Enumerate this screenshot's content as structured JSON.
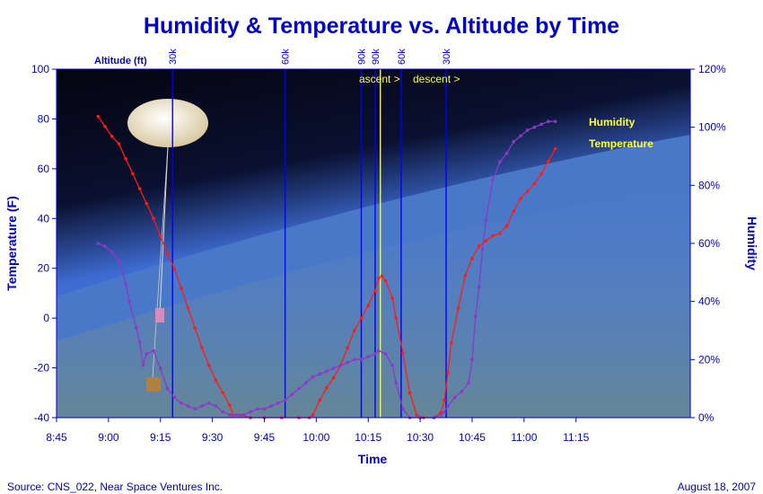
{
  "chart_data": {
    "type": "line",
    "title": "Humidity & Temperature vs. Altitude by Time",
    "xlabel": "Time",
    "ylabel_left": "Temperature (F)",
    "ylabel_right": "Humidity",
    "altitude_label": "Altitude (ft)",
    "x_ticks": [
      "8:45",
      "9:00",
      "9:15",
      "9:30",
      "9:45",
      "10:00",
      "10:15",
      "10:30",
      "10:45",
      "11:00",
      "11:15"
    ],
    "x_tick_minutes": [
      525,
      540,
      555,
      570,
      585,
      600,
      615,
      630,
      645,
      660,
      675
    ],
    "xlim_minutes": [
      525,
      708
    ],
    "ylim_left": [
      -40,
      100
    ],
    "y_ticks_left": [
      "100",
      "80",
      "60",
      "40",
      "20",
      "0",
      "-20",
      "-40"
    ],
    "ylim_right": [
      0,
      120
    ],
    "y_ticks_right": [
      "120%",
      "100%",
      "80%",
      "60%",
      "40%",
      "20%",
      "0%"
    ],
    "altitude_markers": [
      {
        "label": "30k",
        "minute": 558.5
      },
      {
        "label": "60k",
        "minute": 591
      },
      {
        "label": "90k",
        "minute": 613
      },
      {
        "label": "90k",
        "minute": 617
      },
      {
        "label": "60k",
        "minute": 624.5
      },
      {
        "label": "30k",
        "minute": 637.5
      }
    ],
    "burst_minute": 618.5,
    "annotations": {
      "ascent": "ascent >",
      "descent": "descent >"
    },
    "series": [
      {
        "name": "Temperature",
        "color": "#ff1a1a",
        "points": [
          [
            537,
            81
          ],
          [
            539,
            77
          ],
          [
            541,
            73
          ],
          [
            543,
            70
          ],
          [
            545,
            64
          ],
          [
            547,
            58
          ],
          [
            549,
            52
          ],
          [
            551,
            46
          ],
          [
            553,
            40
          ],
          [
            555,
            33
          ],
          [
            557,
            26
          ],
          [
            559,
            20
          ],
          [
            561,
            12
          ],
          [
            563,
            4
          ],
          [
            565,
            -4
          ],
          [
            567,
            -12
          ],
          [
            569,
            -19
          ],
          [
            571,
            -25
          ],
          [
            573,
            -30
          ],
          [
            575,
            -35
          ],
          [
            576,
            -39
          ],
          [
            578,
            -39
          ],
          [
            581,
            -40
          ],
          [
            585,
            -40
          ],
          [
            590,
            -40
          ],
          [
            595,
            -40
          ],
          [
            598,
            -40
          ],
          [
            599,
            -39
          ],
          [
            601,
            -33
          ],
          [
            603,
            -28
          ],
          [
            605,
            -24
          ],
          [
            607,
            -19
          ],
          [
            609,
            -12
          ],
          [
            611,
            -5
          ],
          [
            613,
            0
          ],
          [
            615,
            5
          ],
          [
            617,
            11
          ],
          [
            618,
            16
          ],
          [
            619,
            17
          ],
          [
            620,
            15
          ],
          [
            622,
            8
          ],
          [
            623,
            0
          ],
          [
            625,
            -14
          ],
          [
            627,
            -30
          ],
          [
            629,
            -39
          ],
          [
            631,
            -40
          ],
          [
            634,
            -40
          ],
          [
            636,
            -38
          ],
          [
            637,
            -33
          ],
          [
            638,
            -22
          ],
          [
            639,
            -10
          ],
          [
            641,
            4
          ],
          [
            643,
            17
          ],
          [
            645,
            24
          ],
          [
            647,
            29
          ],
          [
            649,
            31
          ],
          [
            651,
            33
          ],
          [
            653,
            34
          ],
          [
            655,
            37
          ],
          [
            657,
            43
          ],
          [
            659,
            48
          ],
          [
            661,
            51
          ],
          [
            663,
            54
          ],
          [
            665,
            58
          ],
          [
            667,
            63
          ],
          [
            669,
            68
          ]
        ]
      },
      {
        "name": "Humidity",
        "color": "#8a3ac9",
        "points": [
          [
            537,
            60
          ],
          [
            539,
            59
          ],
          [
            541,
            57
          ],
          [
            543,
            54
          ],
          [
            545,
            46
          ],
          [
            546,
            40
          ],
          [
            548,
            31
          ],
          [
            549,
            26
          ],
          [
            550,
            18
          ],
          [
            551,
            22
          ],
          [
            553,
            23
          ],
          [
            555,
            17
          ],
          [
            557,
            10
          ],
          [
            559,
            7
          ],
          [
            561,
            5
          ],
          [
            563,
            4
          ],
          [
            565,
            3
          ],
          [
            567,
            4
          ],
          [
            569,
            5
          ],
          [
            571,
            4
          ],
          [
            573,
            2
          ],
          [
            575,
            1
          ],
          [
            577,
            1
          ],
          [
            579,
            1
          ],
          [
            581,
            2
          ],
          [
            583,
            3
          ],
          [
            585,
            3
          ],
          [
            587,
            4
          ],
          [
            589,
            5
          ],
          [
            591,
            6
          ],
          [
            593,
            8
          ],
          [
            595,
            10
          ],
          [
            597,
            12
          ],
          [
            599,
            14
          ],
          [
            601,
            15
          ],
          [
            603,
            16
          ],
          [
            605,
            17
          ],
          [
            607,
            18
          ],
          [
            609,
            19
          ],
          [
            611,
            20
          ],
          [
            613,
            20
          ],
          [
            615,
            21
          ],
          [
            617,
            22
          ],
          [
            618,
            23
          ],
          [
            620,
            22
          ],
          [
            622,
            18
          ],
          [
            623,
            12
          ],
          [
            625,
            3
          ],
          [
            627,
            0
          ],
          [
            630,
            0
          ],
          [
            634,
            0
          ],
          [
            636,
            1
          ],
          [
            637,
            2
          ],
          [
            638,
            4
          ],
          [
            640,
            7
          ],
          [
            642,
            9
          ],
          [
            644,
            12
          ],
          [
            645,
            20
          ],
          [
            646,
            35
          ],
          [
            647,
            45
          ],
          [
            648,
            58
          ],
          [
            649,
            68
          ],
          [
            651,
            82
          ],
          [
            653,
            88
          ],
          [
            655,
            91
          ],
          [
            657,
            95
          ],
          [
            659,
            97
          ],
          [
            661,
            99
          ],
          [
            663,
            100
          ],
          [
            665,
            101
          ],
          [
            667,
            102
          ],
          [
            669,
            102
          ]
        ]
      }
    ]
  },
  "footer": {
    "source": "Source: CNS_022, Near Space Ventures Inc.",
    "date": "August 18, 2007"
  }
}
